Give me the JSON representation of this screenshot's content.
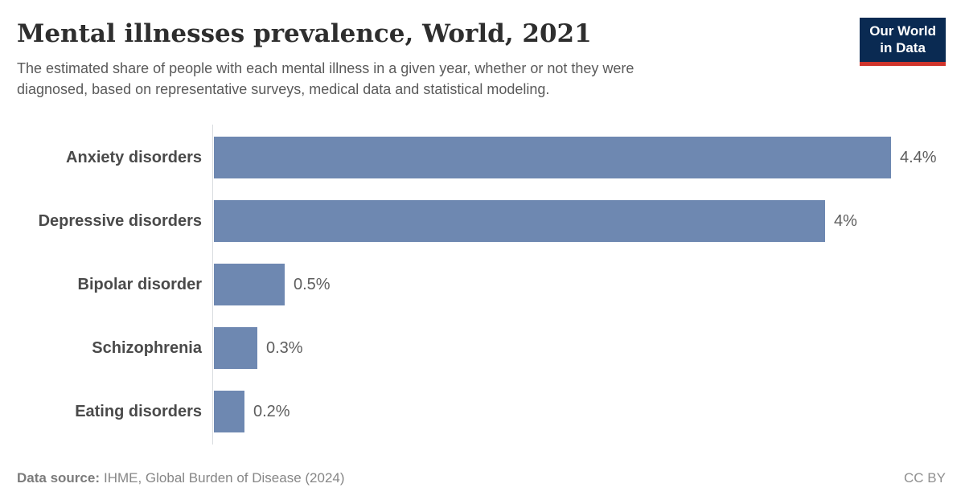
{
  "header": {
    "title": "Mental illnesses prevalence, World, 2021",
    "subtitle_lines": [
      "The estimated share of people with each mental illness in a given year, whether or not they were",
      "diagnosed, based on representative surveys, medical data and statistical modeling."
    ],
    "logo": {
      "line1": "Our World",
      "line2": "in Data"
    }
  },
  "chart_data": {
    "type": "bar",
    "orientation": "horizontal",
    "title": "Mental illnesses prevalence, World, 2021",
    "categories": [
      "Anxiety disorders",
      "Depressive disorders",
      "Bipolar disorder",
      "Schizophrenia",
      "Eating disorders"
    ],
    "values": [
      4.4,
      3.97,
      0.46,
      0.28,
      0.2
    ],
    "value_labels": [
      "4.4%",
      "4%",
      "0.5%",
      "0.3%",
      "0.2%"
    ],
    "unit": "%",
    "xlim": [
      0,
      4.4
    ],
    "grid": false,
    "legend": "none",
    "bar_color": "#6e88b1",
    "axis_line_color": "#d9dce0"
  },
  "footer": {
    "source_label": "Data source:",
    "source_text": "IHME, Global Burden of Disease (2024)",
    "license": "CC BY"
  }
}
